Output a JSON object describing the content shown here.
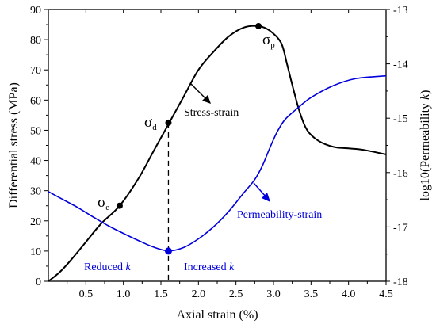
{
  "chart_data": {
    "type": "line",
    "xlabel": "Axial strain (%)",
    "ylabel": "Differential stress (MPa)",
    "y2label_prefix": "log10(Permeability ",
    "y2label_italic": "k",
    "y2label_suffix": ")",
    "xlim": [
      0,
      4.5
    ],
    "ylim": [
      0,
      90
    ],
    "y2lim": [
      -18,
      -13
    ],
    "xticks": [
      0.5,
      1.0,
      1.5,
      2.0,
      2.5,
      3.0,
      3.5,
      4.0,
      4.5
    ],
    "xtick_labels": [
      "0.5",
      "1.0",
      "1.5",
      "2.0",
      "2.5",
      "3.0",
      "3.5",
      "4.0",
      "4.5"
    ],
    "yticks": [
      0,
      10,
      20,
      30,
      40,
      50,
      60,
      70,
      80,
      90
    ],
    "ytick_labels": [
      "0",
      "10",
      "20",
      "30",
      "40",
      "50",
      "60",
      "70",
      "80",
      "90"
    ],
    "y2ticks": [
      -18,
      -17,
      -16,
      -15,
      -14,
      -13
    ],
    "y2tick_labels": [
      "-18",
      "-17",
      "-16",
      "-15",
      "-14",
      "-13"
    ],
    "colors": {
      "stress": "#000000",
      "permeability": "#0000dd"
    },
    "series": [
      {
        "name": "Stress-strain",
        "axis": "left",
        "x": [
          0.0,
          0.15,
          0.3,
          0.5,
          0.7,
          0.95,
          1.2,
          1.4,
          1.6,
          1.8,
          2.0,
          2.2,
          2.4,
          2.6,
          2.8,
          2.95,
          3.1,
          3.18,
          3.25,
          3.35,
          3.45,
          3.6,
          3.8,
          4.0,
          4.2,
          4.5
        ],
        "y": [
          0,
          3,
          7,
          13,
          19,
          25,
          34,
          43,
          52,
          61,
          70,
          76,
          81,
          84,
          84.5,
          83,
          79,
          72,
          65,
          56,
          50,
          46.5,
          44.5,
          44,
          43.5,
          42
        ]
      },
      {
        "name": "Permeability-strain",
        "axis": "right",
        "x": [
          0.0,
          0.2,
          0.4,
          0.6,
          0.8,
          1.0,
          1.2,
          1.4,
          1.6,
          1.8,
          2.0,
          2.2,
          2.4,
          2.6,
          2.75,
          2.85,
          2.95,
          3.05,
          3.15,
          3.3,
          3.5,
          3.8,
          4.1,
          4.5
        ],
        "y": [
          -16.35,
          -16.5,
          -16.65,
          -16.82,
          -16.98,
          -17.12,
          -17.25,
          -17.37,
          -17.44,
          -17.38,
          -17.22,
          -17.0,
          -16.72,
          -16.38,
          -16.13,
          -15.88,
          -15.55,
          -15.25,
          -15.03,
          -14.84,
          -14.62,
          -14.4,
          -14.27,
          -14.22
        ]
      }
    ],
    "points": [
      {
        "name": "σe",
        "sym": "σ",
        "sub": "e",
        "x": 0.95,
        "y": 25,
        "axis": "left"
      },
      {
        "name": "σd",
        "sym": "σ",
        "sub": "d",
        "x": 1.6,
        "y": 52.5,
        "axis": "left"
      },
      {
        "name": "σp",
        "sym": "σ",
        "sub": "p",
        "x": 2.8,
        "y": 84.5,
        "axis": "left"
      },
      {
        "name": "min permeability",
        "x": 1.6,
        "y": 10,
        "axis": "left"
      }
    ],
    "annotations": {
      "stress_label": "Stress-strain",
      "perm_label": "Permeability-strain",
      "reduced_text": "Reduced ",
      "increased_text": "Increased ",
      "k_symbol": "k"
    }
  }
}
